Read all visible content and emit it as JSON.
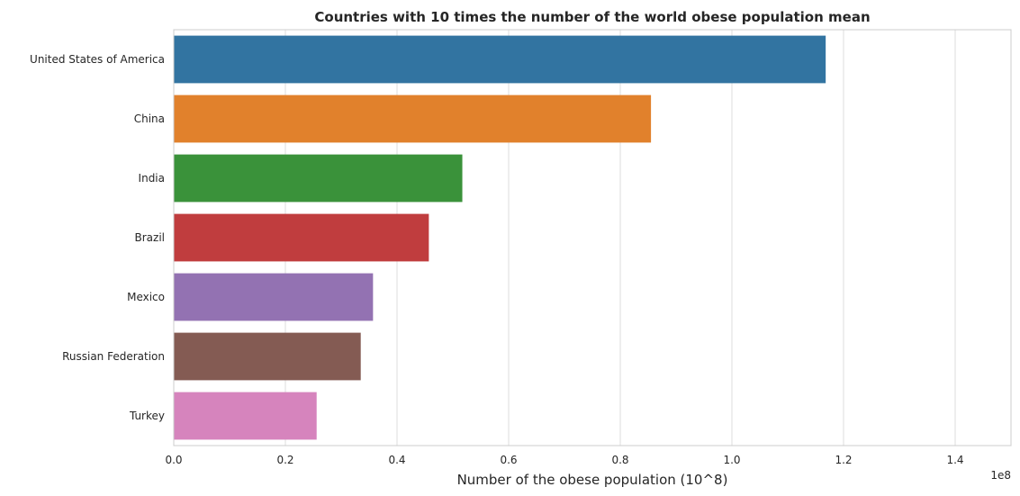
{
  "chart_data": {
    "type": "bar",
    "orientation": "horizontal",
    "title": "Countries with 10 times the number of the world obese population mean",
    "xlabel": "Number of the obese population (10^8)",
    "ylabel": "",
    "offset_label": "1e8",
    "xlim": [
      0,
      1.5
    ],
    "xticks": [
      0.0,
      0.2,
      0.4,
      0.6,
      0.8,
      1.0,
      1.2,
      1.4
    ],
    "xtick_labels": [
      "0.0",
      "0.2",
      "0.4",
      "0.6",
      "0.8",
      "1.0",
      "1.2",
      "1.4"
    ],
    "grid": "vertical",
    "categories": [
      "United States of America",
      "China",
      "India",
      "Brazil",
      "Mexico",
      "Russian Federation",
      "Turkey"
    ],
    "values": [
      1.168,
      0.855,
      0.517,
      0.457,
      0.357,
      0.335,
      0.256
    ],
    "colors": [
      "#3274a1",
      "#e1812c",
      "#3a923a",
      "#c03d3e",
      "#9372b2",
      "#845b53",
      "#d684bd"
    ]
  }
}
